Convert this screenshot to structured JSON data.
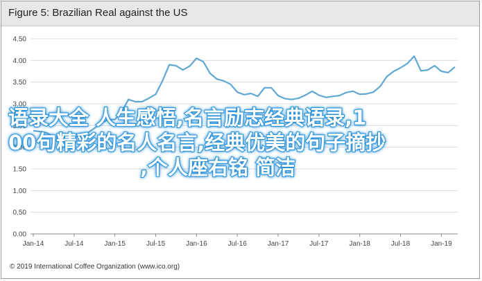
{
  "window": {
    "title": "Figure 5: Brazilian Real against the US"
  },
  "chart_data": {
    "type": "line",
    "title": "Figure 5: Brazilian Real against the US",
    "xlabel": "",
    "ylabel": "",
    "ylim": [
      0,
      4.5
    ],
    "yticks": [
      "0.00",
      "0.50",
      "1.00",
      "1.50",
      "2.00",
      "2.50",
      "3.00",
      "3.50",
      "4.00",
      "4.50"
    ],
    "xticks": [
      "Jan-14",
      "Jul-14",
      "Jan-15",
      "Jul-15",
      "Jan-16",
      "Jul-16",
      "Jan-17",
      "Jul-17",
      "Jan-18",
      "Jul-18",
      "Jan-19"
    ],
    "grid": true,
    "legend": "none",
    "color": "#5fa8d3",
    "series": [
      {
        "x": [
          "Jan-14",
          "Feb-14",
          "Mar-14",
          "Apr-14",
          "May-14",
          "Jun-14",
          "Jul-14",
          "Aug-14",
          "Sep-14",
          "Oct-14",
          "Nov-14",
          "Dec-14",
          "Jan-15",
          "Feb-15",
          "Mar-15",
          "Apr-15",
          "May-15",
          "Jun-15",
          "Jul-15",
          "Aug-15",
          "Sep-15",
          "Oct-15",
          "Nov-15",
          "Dec-15",
          "Jan-16",
          "Feb-16",
          "Mar-16",
          "Apr-16",
          "May-16",
          "Jun-16",
          "Jul-16",
          "Aug-16",
          "Sep-16",
          "Oct-16",
          "Nov-16",
          "Dec-16",
          "Jan-17",
          "Feb-17",
          "Mar-17",
          "Apr-17",
          "May-17",
          "Jun-17",
          "Jul-17",
          "Aug-17",
          "Sep-17",
          "Oct-17",
          "Nov-17",
          "Dec-17",
          "Jan-18",
          "Feb-18",
          "Mar-18",
          "Apr-18",
          "May-18",
          "Jun-18",
          "Jul-18",
          "Aug-18",
          "Sep-18",
          "Oct-18",
          "Nov-18",
          "Dec-18",
          "Jan-19",
          "Feb-19",
          "Mar-19"
        ],
        "values": [
          2.38,
          2.36,
          2.33,
          2.24,
          2.22,
          2.23,
          2.22,
          2.27,
          2.33,
          2.44,
          2.55,
          2.64,
          2.64,
          2.82,
          3.1,
          3.05,
          3.05,
          3.13,
          3.22,
          3.53,
          3.9,
          3.88,
          3.78,
          3.87,
          4.05,
          3.97,
          3.7,
          3.57,
          3.53,
          3.45,
          3.27,
          3.21,
          3.24,
          3.17,
          3.37,
          3.37,
          3.19,
          3.12,
          3.1,
          3.13,
          3.2,
          3.29,
          3.2,
          3.15,
          3.17,
          3.19,
          3.26,
          3.29,
          3.22,
          3.23,
          3.27,
          3.4,
          3.63,
          3.75,
          3.83,
          3.93,
          4.1,
          3.76,
          3.78,
          3.88,
          3.75,
          3.72,
          3.85
        ]
      }
    ]
  },
  "overlay": {
    "line1": "语录大全 人生感悟,名言励志经典语录,1",
    "line2": "00句精彩的名人名言,经典优美的句子摘抄",
    "line3": ",个人座右铭 简洁"
  },
  "footer": {
    "text": "© 2019 International Coffee Organization (www.ico.org)"
  }
}
